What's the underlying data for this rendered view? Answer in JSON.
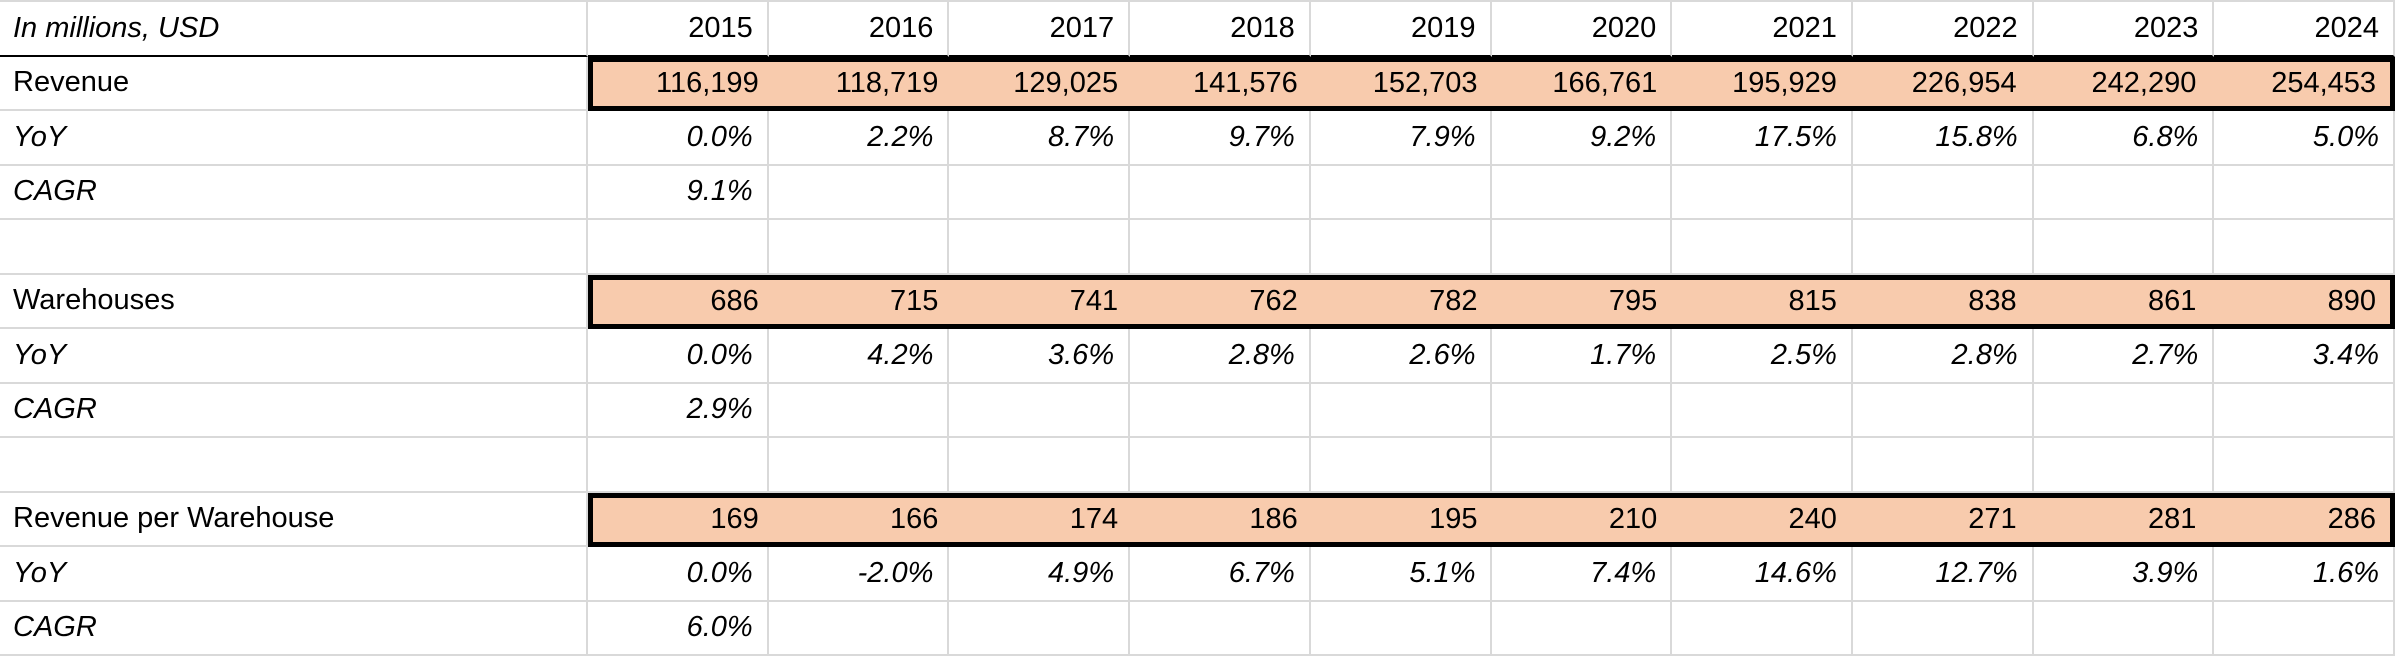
{
  "header": {
    "units_label": "In millions, USD",
    "years": [
      "2015",
      "2016",
      "2017",
      "2018",
      "2019",
      "2020",
      "2021",
      "2022",
      "2023",
      "2024"
    ]
  },
  "labels": {
    "yoy": "YoY",
    "cagr": "CAGR"
  },
  "sections": [
    {
      "name": "Revenue",
      "values": [
        "116,199",
        "118,719",
        "129,025",
        "141,576",
        "152,703",
        "166,761",
        "195,929",
        "226,954",
        "242,290",
        "254,453"
      ],
      "yoy": [
        "0.0%",
        "2.2%",
        "8.7%",
        "9.7%",
        "7.9%",
        "9.2%",
        "17.5%",
        "15.8%",
        "6.8%",
        "5.0%"
      ],
      "cagr": "9.1%"
    },
    {
      "name": "Warehouses",
      "values": [
        "686",
        "715",
        "741",
        "762",
        "782",
        "795",
        "815",
        "838",
        "861",
        "890"
      ],
      "yoy": [
        "0.0%",
        "4.2%",
        "3.6%",
        "2.8%",
        "2.6%",
        "1.7%",
        "2.5%",
        "2.8%",
        "2.7%",
        "3.4%"
      ],
      "cagr": "2.9%"
    },
    {
      "name": "Revenue per Warehouse",
      "values": [
        "169",
        "166",
        "174",
        "186",
        "195",
        "210",
        "240",
        "271",
        "281",
        "286"
      ],
      "yoy": [
        "0.0%",
        "-2.0%",
        "4.9%",
        "6.7%",
        "5.1%",
        "7.4%",
        "14.6%",
        "12.7%",
        "3.9%",
        "1.6%"
      ],
      "cagr": "6.0%"
    }
  ],
  "colors": {
    "highlight_fill": "#F8CBAD",
    "gridline": "#D9D9D9",
    "range_border": "#000000",
    "text": "#000000",
    "background": "#FFFFFF"
  }
}
